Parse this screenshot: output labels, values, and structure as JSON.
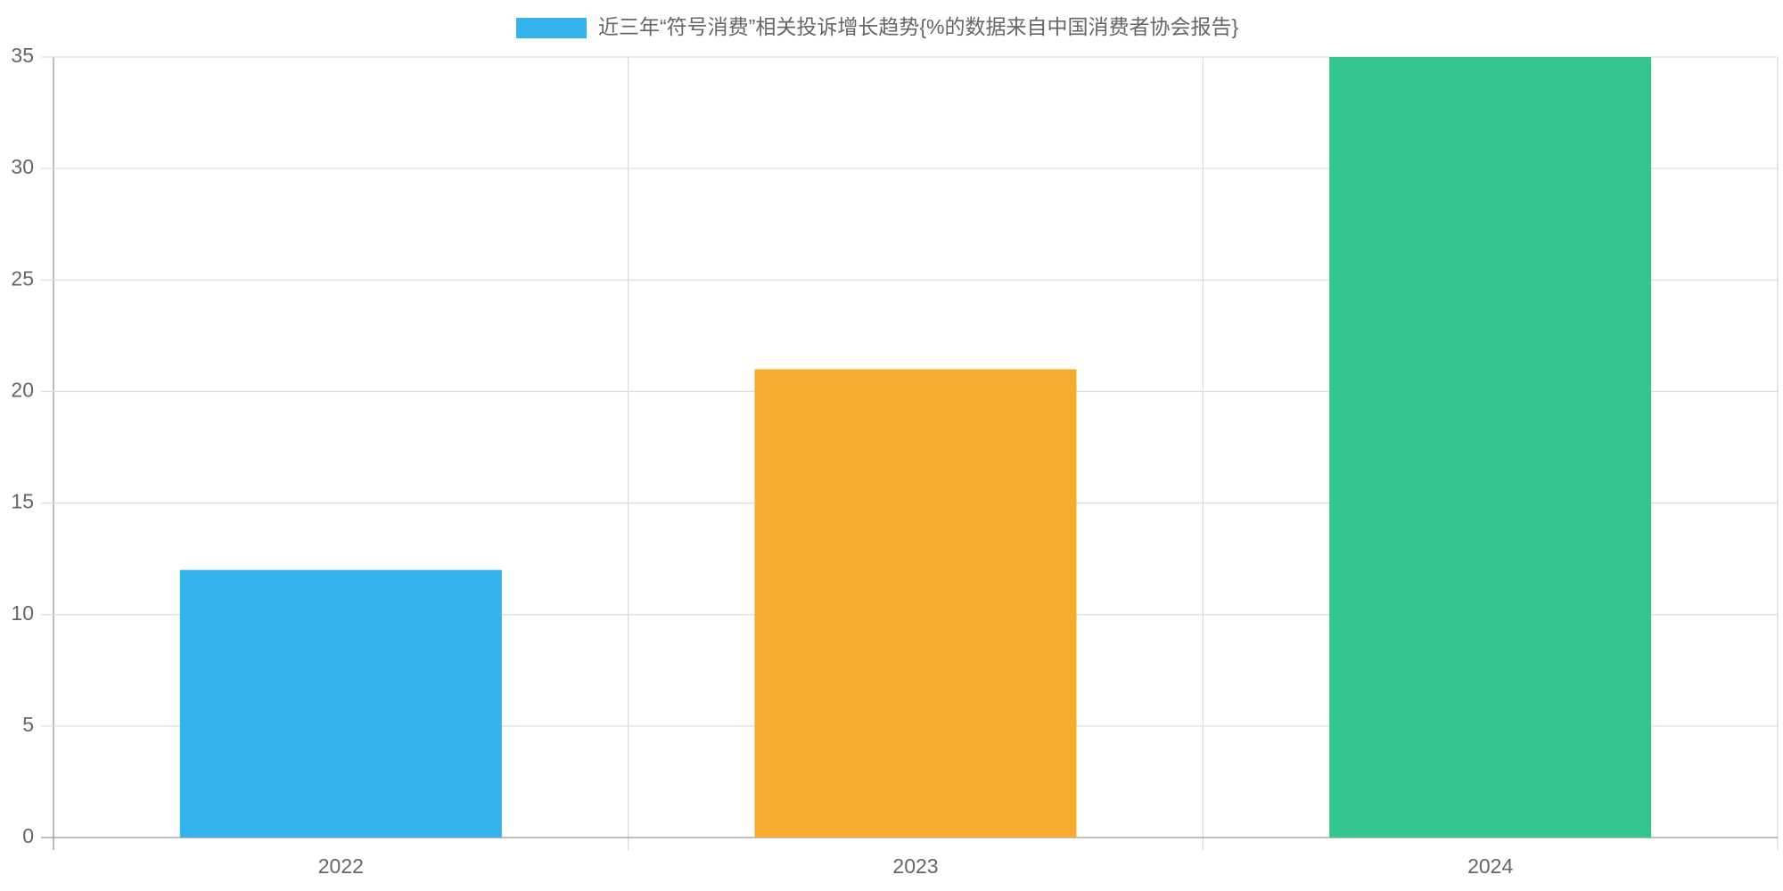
{
  "chart_data": {
    "type": "bar",
    "categories": [
      "2022",
      "2023",
      "2024"
    ],
    "series": [
      {
        "name": "近三年“符号消费”相关投诉增长趋势{%的数据来自中国消费者协会报告}",
        "colors": [
          "#33b3ec",
          "#f5ac2f",
          "#34c48f"
        ],
        "values": [
          12,
          21,
          35
        ]
      }
    ],
    "ylim": [
      0,
      35
    ],
    "yticks": [
      0,
      5,
      10,
      15,
      20,
      25,
      30,
      35
    ],
    "grid": true
  }
}
